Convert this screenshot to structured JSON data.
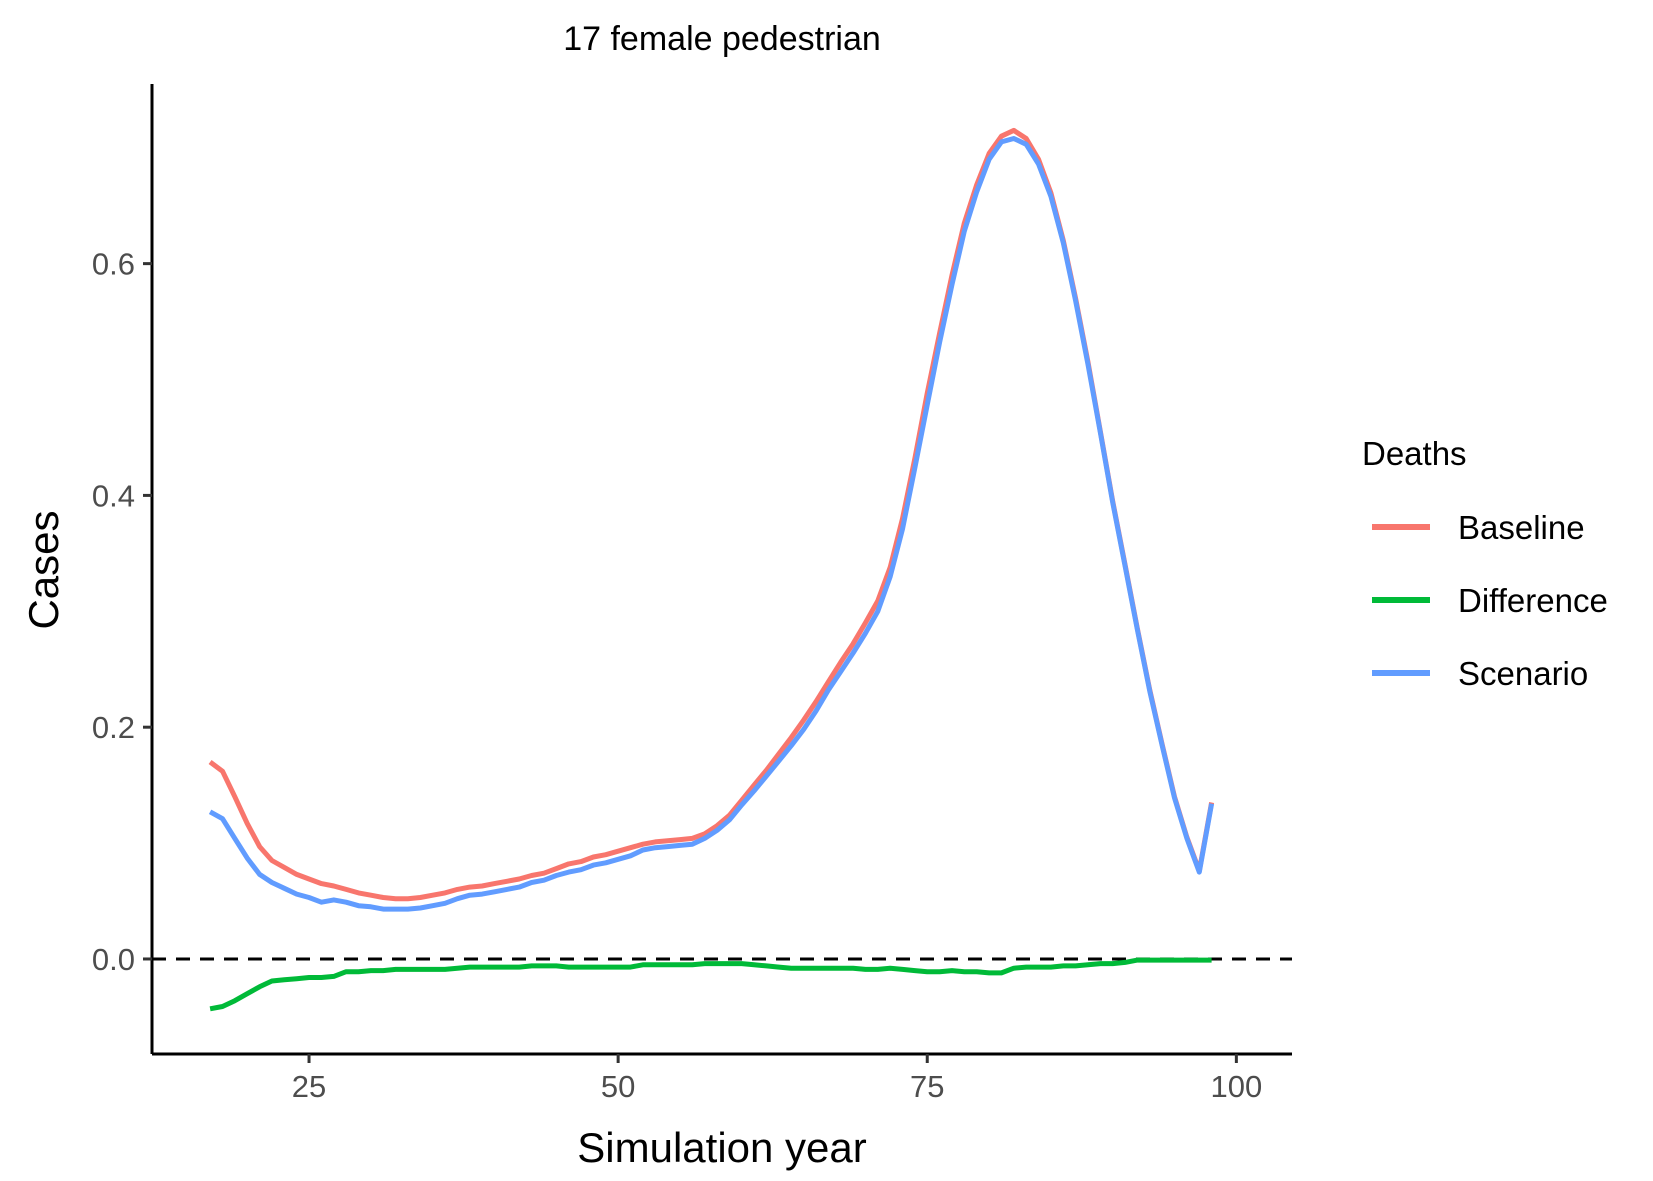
{
  "chart_data": {
    "type": "line",
    "title": "17 female pedestrian",
    "xlabel": "Simulation year",
    "ylabel": "Cases",
    "xlim": [
      12.3,
      104.5
    ],
    "ylim": [
      -0.082,
      0.755
    ],
    "x_ticks": [
      25,
      50,
      75,
      100
    ],
    "y_ticks": [
      0.0,
      0.2,
      0.4,
      0.6
    ],
    "x_tick_labels": [
      "25",
      "50",
      "75",
      "100"
    ],
    "y_tick_labels": [
      "0.0",
      "0.2",
      "0.4",
      "0.6"
    ],
    "grid": false,
    "reference_line": {
      "y": 0,
      "style": "dashed",
      "color": "#000000"
    },
    "legend": {
      "title": "Deaths",
      "position": "right",
      "entries": [
        {
          "label": "Baseline",
          "color": "#F8766D"
        },
        {
          "label": "Difference",
          "color": "#00BA38"
        },
        {
          "label": "Scenario",
          "color": "#619CFF"
        }
      ]
    },
    "series": [
      {
        "name": "Baseline",
        "color": "#F8766D",
        "points": [
          [
            17,
            0.17
          ],
          [
            18,
            0.162
          ],
          [
            19,
            0.14
          ],
          [
            20,
            0.117
          ],
          [
            21,
            0.097
          ],
          [
            22,
            0.085
          ],
          [
            23,
            0.079
          ],
          [
            24,
            0.073
          ],
          [
            25,
            0.069
          ],
          [
            26,
            0.065
          ],
          [
            27,
            0.063
          ],
          [
            28,
            0.06
          ],
          [
            29,
            0.057
          ],
          [
            30,
            0.055
          ],
          [
            31,
            0.053
          ],
          [
            32,
            0.052
          ],
          [
            33,
            0.052
          ],
          [
            34,
            0.053
          ],
          [
            35,
            0.055
          ],
          [
            36,
            0.057
          ],
          [
            37,
            0.06
          ],
          [
            38,
            0.062
          ],
          [
            39,
            0.063
          ],
          [
            40,
            0.065
          ],
          [
            41,
            0.067
          ],
          [
            42,
            0.069
          ],
          [
            43,
            0.072
          ],
          [
            44,
            0.074
          ],
          [
            45,
            0.078
          ],
          [
            46,
            0.082
          ],
          [
            47,
            0.084
          ],
          [
            48,
            0.088
          ],
          [
            49,
            0.09
          ],
          [
            50,
            0.093
          ],
          [
            51,
            0.096
          ],
          [
            52,
            0.099
          ],
          [
            53,
            0.101
          ],
          [
            54,
            0.102
          ],
          [
            55,
            0.103
          ],
          [
            56,
            0.104
          ],
          [
            57,
            0.108
          ],
          [
            58,
            0.115
          ],
          [
            59,
            0.124
          ],
          [
            60,
            0.137
          ],
          [
            61,
            0.15
          ],
          [
            62,
            0.163
          ],
          [
            63,
            0.177
          ],
          [
            64,
            0.191
          ],
          [
            65,
            0.206
          ],
          [
            66,
            0.222
          ],
          [
            67,
            0.239
          ],
          [
            68,
            0.256
          ],
          [
            69,
            0.272
          ],
          [
            70,
            0.29
          ],
          [
            71,
            0.309
          ],
          [
            72,
            0.338
          ],
          [
            73,
            0.38
          ],
          [
            74,
            0.432
          ],
          [
            75,
            0.488
          ],
          [
            76,
            0.54
          ],
          [
            77,
            0.59
          ],
          [
            78,
            0.635
          ],
          [
            79,
            0.668
          ],
          [
            80,
            0.695
          ],
          [
            81,
            0.71
          ],
          [
            82,
            0.715
          ],
          [
            83,
            0.708
          ],
          [
            84,
            0.69
          ],
          [
            85,
            0.661
          ],
          [
            86,
            0.62
          ],
          [
            87,
            0.57
          ],
          [
            88,
            0.515
          ],
          [
            89,
            0.455
          ],
          [
            90,
            0.395
          ],
          [
            91,
            0.34
          ],
          [
            92,
            0.285
          ],
          [
            93,
            0.232
          ],
          [
            94,
            0.185
          ],
          [
            95,
            0.14
          ],
          [
            96,
            0.105
          ],
          [
            97,
            0.076
          ],
          [
            98,
            0.135
          ]
        ]
      },
      {
        "name": "Difference",
        "color": "#00BA38",
        "points": [
          [
            17,
            -0.043
          ],
          [
            18,
            -0.041
          ],
          [
            19,
            -0.036
          ],
          [
            20,
            -0.03
          ],
          [
            21,
            -0.024
          ],
          [
            22,
            -0.019
          ],
          [
            23,
            -0.018
          ],
          [
            24,
            -0.017
          ],
          [
            25,
            -0.016
          ],
          [
            26,
            -0.016
          ],
          [
            27,
            -0.015
          ],
          [
            28,
            -0.011
          ],
          [
            29,
            -0.011
          ],
          [
            30,
            -0.01
          ],
          [
            31,
            -0.01
          ],
          [
            32,
            -0.009
          ],
          [
            33,
            -0.009
          ],
          [
            34,
            -0.009
          ],
          [
            35,
            -0.009
          ],
          [
            36,
            -0.009
          ],
          [
            37,
            -0.008
          ],
          [
            38,
            -0.007
          ],
          [
            39,
            -0.007
          ],
          [
            40,
            -0.007
          ],
          [
            41,
            -0.007
          ],
          [
            42,
            -0.007
          ],
          [
            43,
            -0.006
          ],
          [
            44,
            -0.006
          ],
          [
            45,
            -0.006
          ],
          [
            46,
            -0.007
          ],
          [
            47,
            -0.007
          ],
          [
            48,
            -0.007
          ],
          [
            49,
            -0.007
          ],
          [
            50,
            -0.007
          ],
          [
            51,
            -0.007
          ],
          [
            52,
            -0.005
          ],
          [
            53,
            -0.005
          ],
          [
            54,
            -0.005
          ],
          [
            55,
            -0.005
          ],
          [
            56,
            -0.005
          ],
          [
            57,
            -0.004
          ],
          [
            58,
            -0.004
          ],
          [
            59,
            -0.004
          ],
          [
            60,
            -0.004
          ],
          [
            61,
            -0.005
          ],
          [
            62,
            -0.006
          ],
          [
            63,
            -0.007
          ],
          [
            64,
            -0.008
          ],
          [
            65,
            -0.008
          ],
          [
            66,
            -0.008
          ],
          [
            67,
            -0.008
          ],
          [
            68,
            -0.008
          ],
          [
            69,
            -0.008
          ],
          [
            70,
            -0.009
          ],
          [
            71,
            -0.009
          ],
          [
            72,
            -0.008
          ],
          [
            73,
            -0.009
          ],
          [
            74,
            -0.01
          ],
          [
            75,
            -0.011
          ],
          [
            76,
            -0.011
          ],
          [
            77,
            -0.01
          ],
          [
            78,
            -0.011
          ],
          [
            79,
            -0.011
          ],
          [
            80,
            -0.012
          ],
          [
            81,
            -0.012
          ],
          [
            82,
            -0.008
          ],
          [
            83,
            -0.007
          ],
          [
            84,
            -0.007
          ],
          [
            85,
            -0.007
          ],
          [
            86,
            -0.006
          ],
          [
            87,
            -0.006
          ],
          [
            88,
            -0.005
          ],
          [
            89,
            -0.004
          ],
          [
            90,
            -0.004
          ],
          [
            91,
            -0.003
          ],
          [
            92,
            -0.001
          ],
          [
            93,
            -0.001
          ],
          [
            94,
            -0.001
          ],
          [
            95,
            -0.001
          ],
          [
            96,
            -0.001
          ],
          [
            97,
            -0.001
          ],
          [
            98,
            -0.001
          ]
        ]
      },
      {
        "name": "Scenario",
        "color": "#619CFF",
        "points": [
          [
            17,
            0.127
          ],
          [
            18,
            0.121
          ],
          [
            19,
            0.104
          ],
          [
            20,
            0.087
          ],
          [
            21,
            0.073
          ],
          [
            22,
            0.066
          ],
          [
            23,
            0.061
          ],
          [
            24,
            0.056
          ],
          [
            25,
            0.053
          ],
          [
            26,
            0.049
          ],
          [
            27,
            0.051
          ],
          [
            28,
            0.049
          ],
          [
            29,
            0.046
          ],
          [
            30,
            0.045
          ],
          [
            31,
            0.043
          ],
          [
            32,
            0.043
          ],
          [
            33,
            0.043
          ],
          [
            34,
            0.044
          ],
          [
            35,
            0.046
          ],
          [
            36,
            0.048
          ],
          [
            37,
            0.052
          ],
          [
            38,
            0.055
          ],
          [
            39,
            0.056
          ],
          [
            40,
            0.058
          ],
          [
            41,
            0.06
          ],
          [
            42,
            0.062
          ],
          [
            43,
            0.066
          ],
          [
            44,
            0.068
          ],
          [
            45,
            0.072
          ],
          [
            46,
            0.075
          ],
          [
            47,
            0.077
          ],
          [
            48,
            0.081
          ],
          [
            49,
            0.083
          ],
          [
            50,
            0.086
          ],
          [
            51,
            0.089
          ],
          [
            52,
            0.094
          ],
          [
            53,
            0.096
          ],
          [
            54,
            0.097
          ],
          [
            55,
            0.098
          ],
          [
            56,
            0.099
          ],
          [
            57,
            0.104
          ],
          [
            58,
            0.111
          ],
          [
            59,
            0.12
          ],
          [
            60,
            0.133
          ],
          [
            61,
            0.145
          ],
          [
            62,
            0.158
          ],
          [
            63,
            0.171
          ],
          [
            64,
            0.184
          ],
          [
            65,
            0.198
          ],
          [
            66,
            0.214
          ],
          [
            67,
            0.232
          ],
          [
            68,
            0.248
          ],
          [
            69,
            0.264
          ],
          [
            70,
            0.281
          ],
          [
            71,
            0.3
          ],
          [
            72,
            0.33
          ],
          [
            73,
            0.371
          ],
          [
            74,
            0.424
          ],
          [
            75,
            0.478
          ],
          [
            76,
            0.532
          ],
          [
            77,
            0.582
          ],
          [
            78,
            0.628
          ],
          [
            79,
            0.662
          ],
          [
            80,
            0.69
          ],
          [
            81,
            0.705
          ],
          [
            82,
            0.708
          ],
          [
            83,
            0.703
          ],
          [
            84,
            0.686
          ],
          [
            85,
            0.658
          ],
          [
            86,
            0.618
          ],
          [
            87,
            0.568
          ],
          [
            88,
            0.513
          ],
          [
            89,
            0.454
          ],
          [
            90,
            0.394
          ],
          [
            91,
            0.339
          ],
          [
            92,
            0.284
          ],
          [
            93,
            0.231
          ],
          [
            94,
            0.184
          ],
          [
            95,
            0.139
          ],
          [
            96,
            0.104
          ],
          [
            97,
            0.075
          ],
          [
            98,
            0.134
          ]
        ]
      }
    ]
  }
}
